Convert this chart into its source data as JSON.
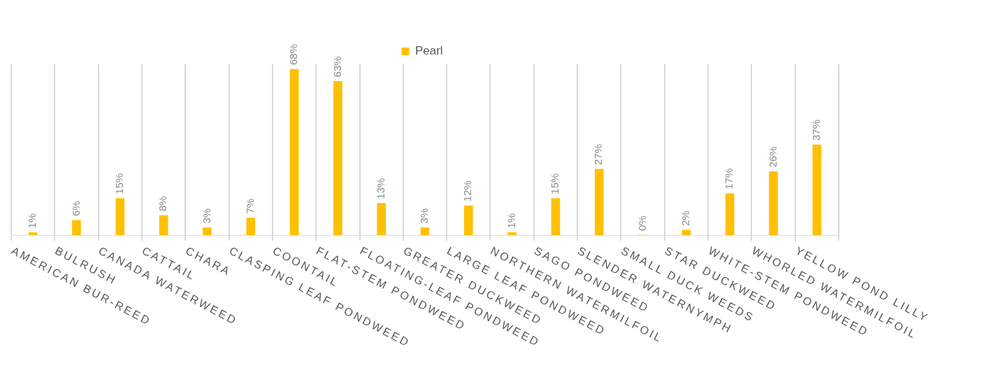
{
  "chart_data": {
    "type": "bar",
    "categories": [
      "AMERICAN BUR-REED",
      "BULRUSH",
      "CANADA WATERWEED",
      "CATTAIL",
      "CHARA",
      "CLASPING LEAF PONDWEED",
      "COONTAIL",
      "FLAT-STEM PONDWEED",
      "FLOATING-LEAF PONDWEED",
      "GREATER DUCKWEED",
      "LARGE LEAF PONDWEED",
      "NORTHERN WATERMILFOIL",
      "SAGO PONDWEED",
      "SLENDER WATERNYMPH",
      "SMALL DUCK WEEDS",
      "STAR DUCKWEED",
      "WHITE-STEM PONDWEED",
      "WHORLED WATERMILFOIL",
      "YELLOW POND LILLY"
    ],
    "series": [
      {
        "name": "Pearl",
        "color": "#ffc000",
        "values": [
          1,
          6,
          15,
          8,
          3,
          7,
          68,
          63,
          13,
          3,
          12,
          1,
          15,
          27,
          0,
          2,
          17,
          26,
          37
        ],
        "value_labels": [
          "1%",
          "6%",
          "15%",
          "8%",
          "3%",
          "7%",
          "68%",
          "63%",
          "13%",
          "3%",
          "12%",
          "1%",
          "15%",
          "27%",
          "0%",
          "2%",
          "17%",
          "26%",
          "37%"
        ]
      }
    ],
    "legend": "top",
    "grid": "x"
  }
}
